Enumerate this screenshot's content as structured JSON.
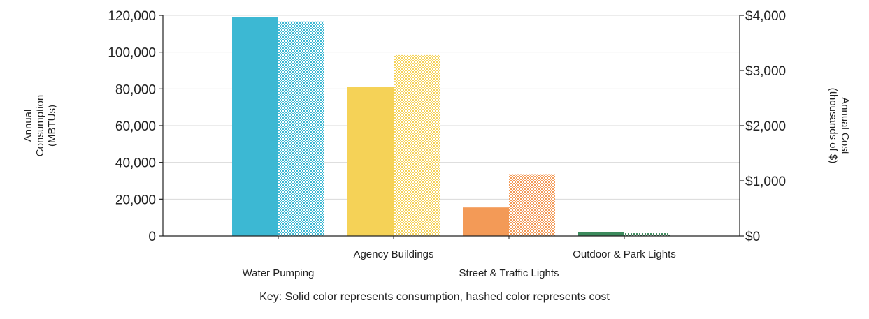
{
  "chart_data": {
    "type": "bar",
    "categories": [
      "Water Pumping",
      "Agency Buildings",
      "Street & Traffic Lights",
      "Outdoor & Park Lights"
    ],
    "series": [
      {
        "values": [
          119000,
          81000,
          15500,
          2000
        ],
        "axis": "left",
        "fill": "solid"
      },
      {
        "values": [
          3890,
          3280,
          1120,
          50
        ],
        "axis": "right",
        "fill": "hashed"
      }
    ],
    "colors": [
      "#3cb8d3",
      "#f5d257",
      "#f39a57",
      "#3b8a5c"
    ],
    "ylabel_left": [
      "Annual",
      "Consumption",
      "(MBTUs)"
    ],
    "ylabel_right": [
      "Annual Cost",
      "(thousands of $)"
    ],
    "ylim_left": [
      0,
      120000
    ],
    "ylim_right": [
      0,
      4000
    ],
    "yticks_left": [
      "0",
      "20,000",
      "40,000",
      "60,000",
      "80,000",
      "100,000",
      "120,000"
    ],
    "yticks_right": [
      "$0",
      "$1,000",
      "$2,000",
      "$3,000",
      "$4,000"
    ],
    "grid": true
  },
  "footnote": "Key: Solid color represents consumption, hashed color represents cost"
}
